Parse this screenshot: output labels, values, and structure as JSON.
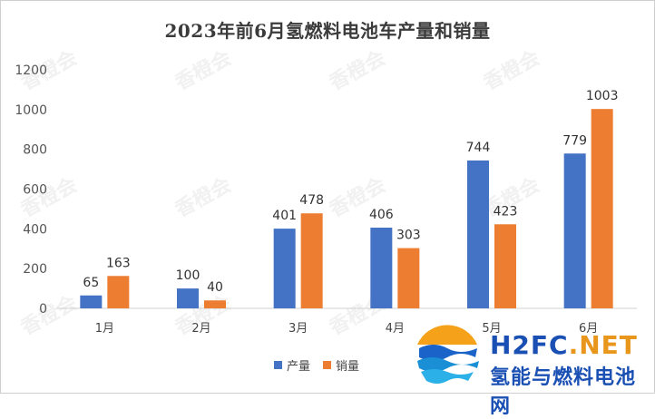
{
  "title": "2023年前6月氢燃料电池车产量和销量",
  "watermark_text": "香橙会",
  "legend": [
    "产量",
    "销量"
  ],
  "colors": {
    "production": "#4472C4",
    "sales": "#ED7D31"
  },
  "logo": {
    "part1": "H2FC",
    "part2": ".NET",
    "subtitle": "氢能与燃料电池网",
    "part1_color": "#1a4fb3",
    "part2_color": "#e8961c"
  },
  "chart_data": {
    "type": "bar",
    "title": "2023年前6月氢燃料电池车产量和销量",
    "categories": [
      "1月",
      "2月",
      "3月",
      "4月",
      "5月",
      "6月"
    ],
    "series": [
      {
        "name": "产量",
        "values": [
          65,
          100,
          401,
          406,
          744,
          779
        ]
      },
      {
        "name": "销量",
        "values": [
          163,
          40,
          478,
          303,
          423,
          1003
        ]
      }
    ],
    "ylim": [
      0,
      1200
    ],
    "yticks": [
      0,
      200,
      400,
      600,
      800,
      1000,
      1200
    ],
    "grid": false,
    "legend_position": "bottom"
  }
}
